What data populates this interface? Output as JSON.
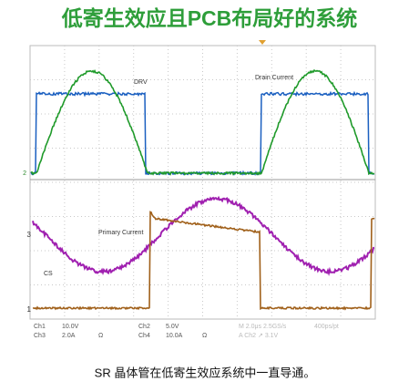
{
  "header": {
    "title": "低寄生效应且PCB布局好的系统"
  },
  "scope": {
    "labels": {
      "drv": "DRV",
      "drain_current": "Drain Current",
      "primary_current": "Primary Current",
      "cs": "CS"
    },
    "markers": {
      "ch2": "2",
      "ch3": "3",
      "ch1": "1"
    },
    "readout": {
      "row1": [
        "Ch1",
        "10.0V",
        "Ch2",
        "5.0V",
        "M 2.0μs 2.5GS/s",
        "400ps/pt"
      ],
      "row2": [
        "Ch3",
        "2.0A",
        "Ω",
        "Ch4",
        "10.0A",
        "Ω",
        "A Ch2 ↗ 3.1V"
      ]
    }
  },
  "caption": "SR 晶体管在低寄生效应系统中一直导通。"
}
